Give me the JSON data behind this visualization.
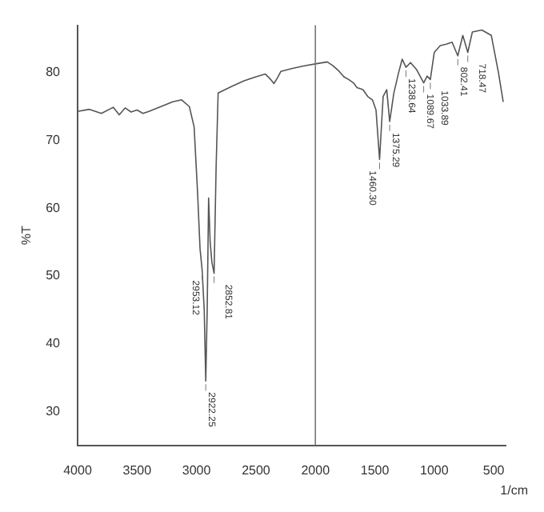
{
  "chart_data": {
    "type": "line",
    "xlabel": "1/cm",
    "ylabel": "%T",
    "x": [
      4000,
      3900,
      3800,
      3700,
      3650,
      3600,
      3550,
      3500,
      3450,
      3400,
      3300,
      3200,
      3125,
      3060,
      3020,
      2990,
      2970,
      2953,
      2935,
      2922,
      2910,
      2898,
      2885,
      2870,
      2852,
      2835,
      2818,
      2700,
      2600,
      2500,
      2420,
      2376,
      2349,
      2320,
      2290,
      2200,
      2100,
      2000,
      1900,
      1850,
      1800,
      1760,
      1720,
      1680,
      1650,
      1600,
      1560,
      1520,
      1490,
      1460,
      1430,
      1400,
      1375,
      1340,
      1300,
      1270,
      1238,
      1200,
      1150,
      1089,
      1060,
      1033,
      1000,
      950,
      900,
      850,
      802,
      760,
      718,
      680,
      600,
      520,
      460,
      420
    ],
    "series": [
      {
        "color": "#555555",
        "values": [
          74.3,
          74.6,
          74.0,
          74.9,
          73.8,
          74.8,
          74.2,
          74.5,
          74.0,
          74.3,
          75.0,
          75.7,
          76.0,
          75.0,
          72.0,
          62.0,
          54.0,
          51.0,
          45.0,
          34.5,
          45.0,
          61.5,
          55.0,
          52.0,
          50.4,
          66.0,
          77.0,
          78.0,
          78.8,
          79.4,
          79.8,
          79.0,
          78.4,
          79.2,
          80.2,
          80.6,
          81.0,
          81.3,
          81.6,
          81.0,
          80.2,
          79.4,
          79.0,
          78.5,
          77.8,
          77.5,
          76.5,
          76.0,
          74.5,
          67.2,
          76.5,
          77.5,
          72.8,
          77.0,
          80.0,
          82.0,
          80.8,
          81.5,
          80.5,
          78.5,
          79.5,
          79.0,
          83.0,
          84.0,
          84.2,
          84.5,
          82.5,
          85.5,
          83.0,
          86.0,
          86.3,
          85.5,
          80.0,
          75.7
        ]
      }
    ],
    "xlim": [
      4000,
      400
    ],
    "xticks": [
      4000,
      3500,
      3000,
      2500,
      2000,
      1500,
      1000,
      500
    ],
    "ylim": [
      25,
      87
    ],
    "yticks": [
      30,
      40,
      50,
      60,
      70,
      80
    ],
    "ref_lines": [
      {
        "axis": "x",
        "value": 2000
      }
    ],
    "annotations": [
      {
        "text": "2953.12",
        "x": 2953,
        "y": 51.0
      },
      {
        "text": "2922.25",
        "x": 2922,
        "y": 34.5
      },
      {
        "text": "2852.81",
        "x": 2852,
        "y": 50.4
      },
      {
        "text": "1460.30",
        "x": 1460,
        "y": 67.2
      },
      {
        "text": "1375.29",
        "x": 1375,
        "y": 72.8
      },
      {
        "text": "1238.64",
        "x": 1238,
        "y": 80.8
      },
      {
        "text": "1089.67",
        "x": 1089,
        "y": 78.5
      },
      {
        "text": "1033.89",
        "x": 1033,
        "y": 79.0
      },
      {
        "text": "802.41",
        "x": 802,
        "y": 82.5
      },
      {
        "text": "718.47",
        "x": 718,
        "y": 83.0
      }
    ],
    "grid": false,
    "legend": false,
    "marker": "none",
    "line_style": "solid"
  }
}
